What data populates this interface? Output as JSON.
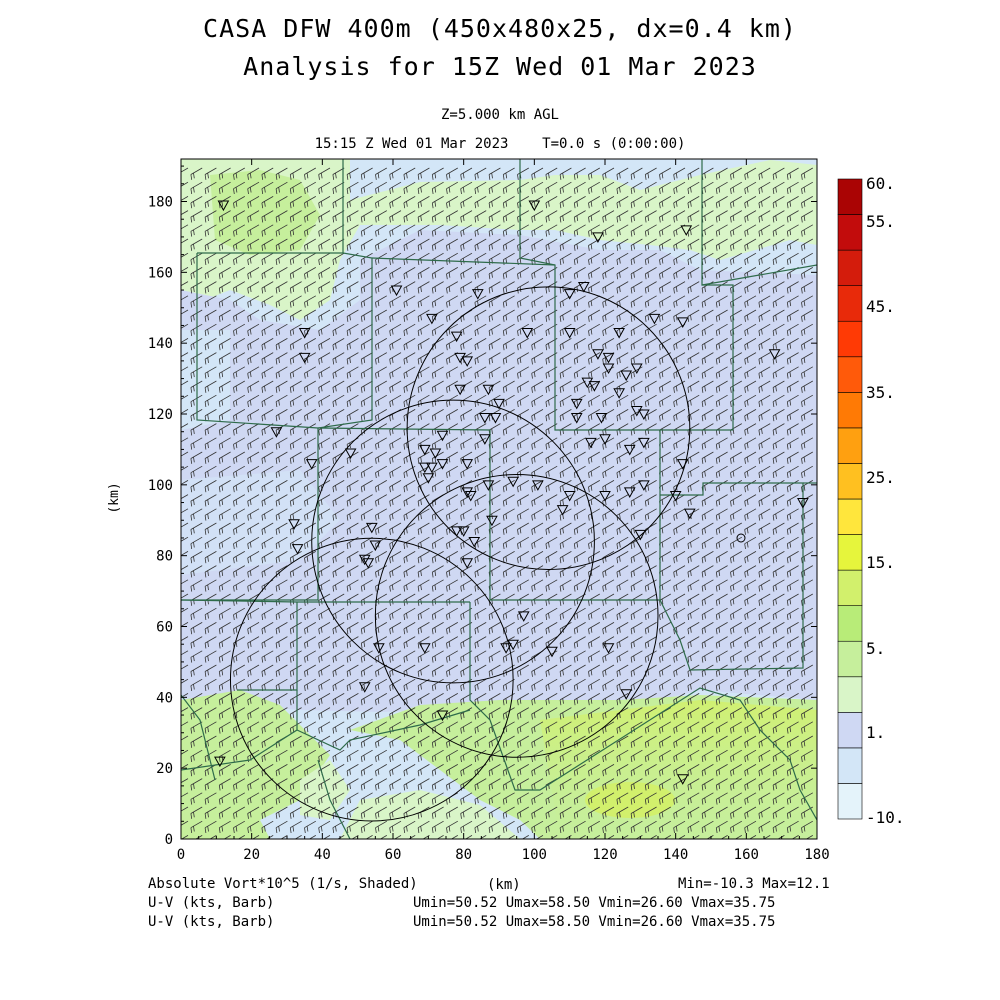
{
  "header": {
    "title_line1": "CASA DFW 400m (450x480x25, dx=0.4 km)",
    "title_line2": "Analysis for 15Z Wed 01 Mar 2023",
    "level": "Z=5.000 km AGL",
    "time": "15:15 Z Wed 01 Mar 2023    T=0.0 s (0:00:00)"
  },
  "footer": {
    "field_label": "Absolute Vort*10^5 (1/s, Shaded)",
    "xunit": "(km)",
    "minmax": "Min=-10.3 Max=12.1",
    "wind1_label": "U-V (kts, Barb)",
    "wind1_stats": "Umin=50.52 Umax=58.50 Vmin=26.60 Vmax=35.75",
    "wind2_label": "U-V (kts, Barb)",
    "wind2_stats": "Umin=50.52 Umax=58.50 Vmin=26.60 Vmax=35.75"
  },
  "colors": {
    "neg": "#e4f3fa",
    "lightblue": "#d3e6f7",
    "lavender": "#cfd8f3",
    "pale_green": "#d9f5c8",
    "green": "#c6ef9c",
    "yellow_green": "#d2f06c",
    "county_line": "#2e6b4a"
  },
  "chart_data": {
    "type": "heatmap",
    "variable": "Absolute Vort*10^5 (1/s, Shaded)",
    "xlabel": "",
    "ylabel": "(km)",
    "xlim": [
      0,
      180
    ],
    "ylim": [
      0,
      192
    ],
    "xticks": [
      "0",
      "20",
      "40",
      "60",
      "80",
      "100",
      "120",
      "140",
      "160",
      "180"
    ],
    "yticks": [
      "0",
      "20",
      "40",
      "60",
      "80",
      "100",
      "120",
      "140",
      "160",
      "180"
    ],
    "min": -10.3,
    "max": 12.1,
    "colorbar": {
      "labels": [
        "60.",
        "55.",
        "45.",
        "35.",
        "25.",
        "15.",
        "5.",
        "1.",
        "-10."
      ],
      "colors": [
        "#e4f3fa",
        "#d3e6f7",
        "#cfd8f3",
        "#d9f5c8",
        "#c6ef9c",
        "#b8ec78",
        "#d2f06c",
        "#e6f53c",
        "#ffe63c",
        "#ffc020",
        "#ffa010",
        "#ff7a05",
        "#ff5a0a",
        "#ff3a05",
        "#e82a0a",
        "#d41c0c",
        "#c20c0c",
        "#aa0404"
      ]
    },
    "wind": {
      "u_min": 50.52,
      "u_max": 58.5,
      "v_min": 26.6,
      "v_max": 35.75,
      "units": "kts"
    },
    "radar_rings": [
      {
        "cx": 104,
        "cy": 116,
        "r": 40
      },
      {
        "cx": 77,
        "cy": 84,
        "r": 40
      },
      {
        "cx": 95,
        "cy": 63,
        "r": 40
      },
      {
        "cx": 54,
        "cy": 45,
        "r": 40
      }
    ],
    "stations": [
      [
        12,
        179
      ],
      [
        100,
        179
      ],
      [
        118,
        170
      ],
      [
        143,
        172
      ],
      [
        61,
        155
      ],
      [
        84,
        154
      ],
      [
        110,
        154
      ],
      [
        114,
        156
      ],
      [
        35,
        143
      ],
      [
        35,
        136
      ],
      [
        71,
        147
      ],
      [
        78,
        142
      ],
      [
        98,
        143
      ],
      [
        110,
        143
      ],
      [
        124,
        143
      ],
      [
        134,
        147
      ],
      [
        142,
        146
      ],
      [
        79,
        136
      ],
      [
        81,
        135
      ],
      [
        118,
        137
      ],
      [
        121,
        136
      ],
      [
        168,
        137
      ],
      [
        121,
        133
      ],
      [
        126,
        131
      ],
      [
        129,
        133
      ],
      [
        115,
        129
      ],
      [
        117,
        128
      ],
      [
        79,
        127
      ],
      [
        87,
        127
      ],
      [
        124,
        126
      ],
      [
        90,
        123
      ],
      [
        112,
        123
      ],
      [
        86,
        119
      ],
      [
        89,
        119
      ],
      [
        112,
        119
      ],
      [
        119,
        119
      ],
      [
        129,
        121
      ],
      [
        131,
        120
      ],
      [
        27,
        115
      ],
      [
        74,
        114
      ],
      [
        86,
        113
      ],
      [
        116,
        112
      ],
      [
        120,
        113
      ],
      [
        131,
        112
      ],
      [
        69,
        110
      ],
      [
        72,
        109
      ],
      [
        127,
        110
      ],
      [
        37,
        106
      ],
      [
        48,
        109
      ],
      [
        81,
        106
      ],
      [
        69,
        105
      ],
      [
        71,
        105
      ],
      [
        74,
        106
      ],
      [
        142,
        106
      ],
      [
        70,
        102
      ],
      [
        94,
        101
      ],
      [
        87,
        100
      ],
      [
        101,
        100
      ],
      [
        81,
        98
      ],
      [
        82,
        97
      ],
      [
        110,
        97
      ],
      [
        120,
        97
      ],
      [
        127,
        98
      ],
      [
        131,
        100
      ],
      [
        140,
        97
      ],
      [
        144,
        92
      ],
      [
        108,
        93
      ],
      [
        88,
        90
      ],
      [
        78,
        87
      ],
      [
        80,
        87
      ],
      [
        32,
        89
      ],
      [
        54,
        88
      ],
      [
        130,
        86
      ],
      [
        176,
        95
      ],
      [
        55,
        83
      ],
      [
        83,
        84
      ],
      [
        33,
        82
      ],
      [
        52,
        79
      ],
      [
        53,
        78
      ],
      [
        81,
        78
      ],
      [
        97,
        63
      ],
      [
        56,
        54
      ],
      [
        69,
        54
      ],
      [
        92,
        54
      ],
      [
        94,
        55
      ],
      [
        105,
        53
      ],
      [
        121,
        54
      ],
      [
        52,
        43
      ],
      [
        126,
        41
      ],
      [
        74,
        35
      ],
      [
        142,
        17
      ],
      [
        11,
        22
      ]
    ]
  }
}
